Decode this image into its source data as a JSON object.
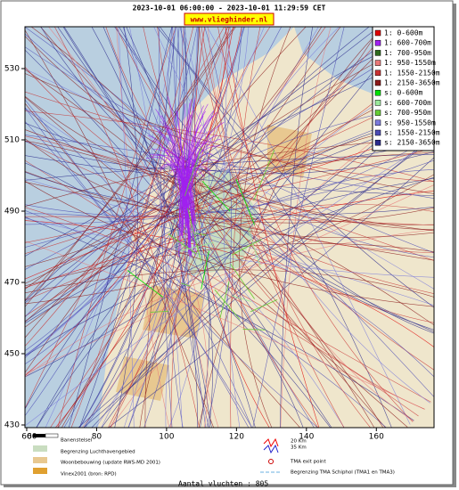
{
  "chart_data": {
    "type": "map",
    "title": "2023-10-01 06:00:00 - 2023-10-01 11:29:59 CET",
    "subtitle": "www.vlieghinder.nl",
    "xlim": [
      59.5,
      176.5
    ],
    "ylim": [
      429.25,
      541.75
    ],
    "xticks": [
      60,
      80,
      100,
      120,
      140,
      160
    ],
    "yticks": [
      430,
      450,
      470,
      490,
      510,
      530
    ],
    "legend": [
      {
        "name": "1: 0-600m",
        "color": "#e00000"
      },
      {
        "name": "1: 600-700m",
        "color": "#a020f0"
      },
      {
        "name": "1: 700-950m",
        "color": "#2e6b1e"
      },
      {
        "name": "1: 950-1550m",
        "color": "#e87878"
      },
      {
        "name": "1: 1550-2150m",
        "color": "#c83232"
      },
      {
        "name": "1: 2150-3650m",
        "color": "#8b1a1a"
      },
      {
        "name": "s: 0-600m",
        "color": "#00e000"
      },
      {
        "name": "s: 600-700m",
        "color": "#9be89b"
      },
      {
        "name": "s: 700-950m",
        "color": "#66cc33"
      },
      {
        "name": "s: 950-1550m",
        "color": "#7a7adc"
      },
      {
        "name": "s: 1550-2150m",
        "color": "#4a4ab4"
      },
      {
        "name": "s: 2150-3650m",
        "color": "#2a2a8c"
      }
    ],
    "map_legend": {
      "scale": "60",
      "runways": "Banenstelsel",
      "airport_boundary": "Begrenzing Luchthavengebied",
      "housing": "Woonbebouwing (update RWS-MD 2001)",
      "vinex": "Vinex2001 (bron: RPD)",
      "km20": "20 Km",
      "km35": "35 Km",
      "tma_exit": "TMA exit point",
      "tma_boundary": "Begrenzing TMA Schiphol  (TMA1 en TMA3)"
    },
    "flights": "Aantal vluchten : 805"
  }
}
